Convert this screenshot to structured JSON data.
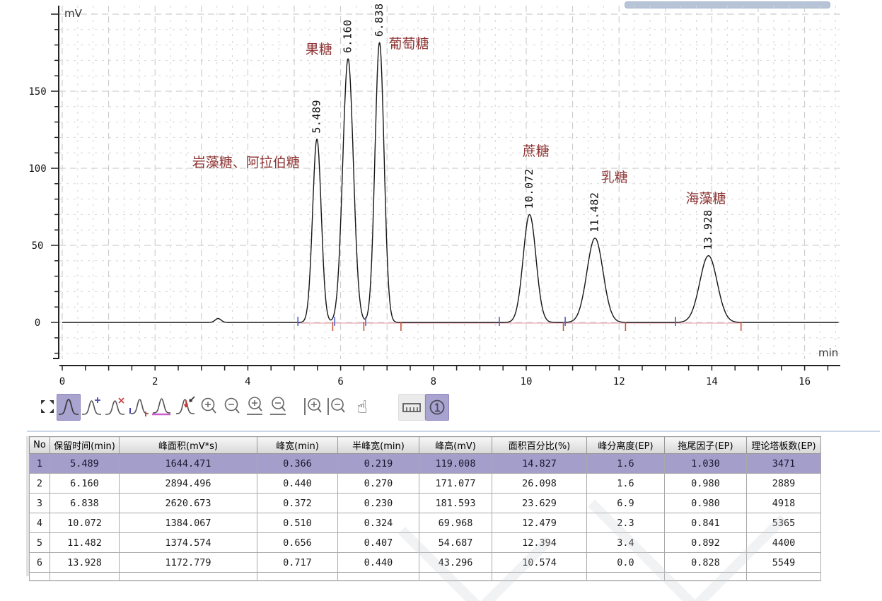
{
  "chart_data": {
    "type": "line",
    "title": "",
    "xlabel": "min",
    "ylabel": "mV",
    "x_range": [
      0,
      16.73
    ],
    "y_range": [
      -24,
      205.5
    ],
    "x_tick_labels": [
      0,
      2,
      4,
      6,
      8,
      10,
      12,
      14,
      16
    ],
    "y_tick_labels": [
      0,
      50,
      100,
      150
    ],
    "x_minor_tick_step": 0.5,
    "y_minor_tick_step": 10,
    "grid": true,
    "baseline_mv": 0,
    "peaks": [
      {
        "rt": 5.489,
        "height": 119.008,
        "fwhm": 0.219,
        "rt_label": "5.489",
        "name": "岩藻糖、阿拉伯糖"
      },
      {
        "rt": 6.16,
        "height": 171.077,
        "fwhm": 0.27,
        "rt_label": "6.160",
        "name": "果糖"
      },
      {
        "rt": 6.838,
        "height": 181.593,
        "fwhm": 0.23,
        "rt_label": "6.838",
        "name": "葡萄糖"
      },
      {
        "rt": 10.072,
        "height": 69.968,
        "fwhm": 0.324,
        "rt_label": "10.072",
        "name": "蔗糖"
      },
      {
        "rt": 11.482,
        "height": 54.687,
        "fwhm": 0.407,
        "rt_label": "11.482",
        "name": "乳糖"
      },
      {
        "rt": 13.928,
        "height": 43.296,
        "fwhm": 0.44,
        "rt_label": "13.928",
        "name": "海藻糖"
      }
    ],
    "extra_bump": {
      "rt": 3.36,
      "height": 2.5,
      "fwhm": 0.15
    },
    "peak_name_annotations": [
      {
        "text": "岩藻糖、阿拉伯糖",
        "t": 3.96,
        "mv": 100.9
      },
      {
        "text": "果糖",
        "t": 5.53,
        "mv": 174.3
      },
      {
        "text": "葡萄糖",
        "t": 7.47,
        "mv": 178.0
      },
      {
        "text": "蔗糖",
        "t": 10.21,
        "mv": 108.3
      },
      {
        "text": "乳糖",
        "t": 11.9,
        "mv": 91.3
      },
      {
        "text": "海藻糖",
        "t": 13.87,
        "mv": 77.5
      }
    ],
    "integration": {
      "baseline_start_t": 5.08,
      "baseline_end_t": 14.63,
      "markers": [
        {
          "t": 5.08,
          "color": "blue"
        },
        {
          "t": 5.83,
          "color": "red"
        },
        {
          "t": 5.87,
          "color": "blue"
        },
        {
          "t": 6.5,
          "color": "red"
        },
        {
          "t": 6.54,
          "color": "blue"
        },
        {
          "t": 7.3,
          "color": "red"
        },
        {
          "t": 9.42,
          "color": "blue"
        },
        {
          "t": 10.8,
          "color": "red"
        },
        {
          "t": 10.84,
          "color": "blue"
        },
        {
          "t": 12.14,
          "color": "red"
        },
        {
          "t": 13.22,
          "color": "blue"
        },
        {
          "t": 14.63,
          "color": "red"
        }
      ]
    },
    "colors": {
      "curve": "#161616",
      "grid_minor": "#d6d6d6",
      "grid_major": "#c6c6c6",
      "axis": "#222222",
      "label_red": "#8e3434",
      "baseline_pink": "#e9aeb6",
      "marker_blue": "#5163c8",
      "marker_red": "#c8553a",
      "selected_lavender": "#a9a3d0"
    }
  },
  "toolbar": {
    "hand_glyph": "☝",
    "icons": [
      {
        "name": "fit-view",
        "selected": false
      },
      {
        "name": "peak-select",
        "selected": true
      },
      {
        "name": "peak-add",
        "selected": false
      },
      {
        "name": "peak-delete",
        "selected": false
      },
      {
        "name": "peak-manual-integration",
        "selected": false
      },
      {
        "name": "peak-baseline",
        "selected": false
      },
      {
        "name": "peak-move-point",
        "selected": false
      },
      {
        "name": "zoom-in",
        "selected": false
      },
      {
        "name": "zoom-out",
        "selected": false
      },
      {
        "name": "zoom-in-x",
        "selected": false
      },
      {
        "name": "zoom-out-x",
        "selected": false
      },
      {
        "name": "zoom-in-y",
        "selected": false
      },
      {
        "name": "zoom-out-y",
        "selected": false
      },
      {
        "name": "pan-hand",
        "selected": false
      },
      {
        "name": "measure-ruler",
        "selected": false
      },
      {
        "name": "marker-one",
        "selected": true
      }
    ]
  },
  "table": {
    "columns": [
      "No",
      "保留时间(min)",
      "峰面积(mV*s)",
      "峰宽(min)",
      "半峰宽(min)",
      "峰高(mV)",
      "面积百分比(%)",
      "峰分离度(EP)",
      "拖尾因子(EP)",
      "理论塔板数(EP)"
    ],
    "selected_row_index": 0,
    "rows": [
      [
        "1",
        "5.489",
        "1644.471",
        "0.366",
        "0.219",
        "119.008",
        "14.827",
        "1.6",
        "1.030",
        "3471"
      ],
      [
        "2",
        "6.160",
        "2894.496",
        "0.440",
        "0.270",
        "171.077",
        "26.098",
        "1.6",
        "0.980",
        "2889"
      ],
      [
        "3",
        "6.838",
        "2620.673",
        "0.372",
        "0.230",
        "181.593",
        "23.629",
        "6.9",
        "0.980",
        "4918"
      ],
      [
        "4",
        "10.072",
        "1384.067",
        "0.510",
        "0.324",
        "69.968",
        "12.479",
        "2.3",
        "0.841",
        "5365"
      ],
      [
        "5",
        "11.482",
        "1374.574",
        "0.656",
        "0.407",
        "54.687",
        "12.394",
        "3.4",
        "0.892",
        "4400"
      ],
      [
        "6",
        "13.928",
        "1172.779",
        "0.717",
        "0.440",
        "43.296",
        "10.574",
        "0.0",
        "0.828",
        "5549"
      ]
    ]
  }
}
